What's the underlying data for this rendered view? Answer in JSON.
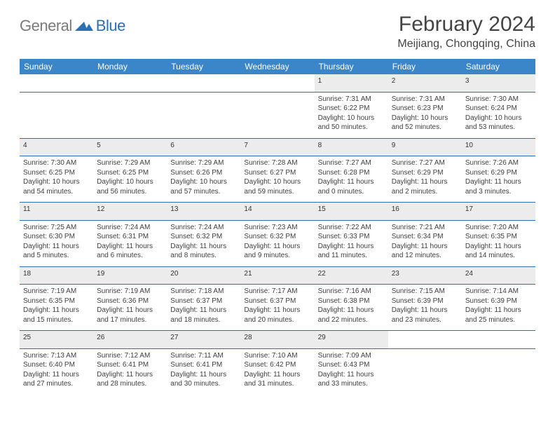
{
  "logo": {
    "left": "General",
    "right": "Blue"
  },
  "title": "February 2024",
  "location": "Meijiang, Chongqing, China",
  "colors": {
    "header_bg": "#3a86c8",
    "rule": "#2d6fb5",
    "daynum_bg": "#ececec",
    "text": "#333333",
    "logo_gray": "#7a7a7a",
    "logo_blue": "#2d6fb5"
  },
  "daysOfWeek": [
    "Sunday",
    "Monday",
    "Tuesday",
    "Wednesday",
    "Thursday",
    "Friday",
    "Saturday"
  ],
  "weeks": [
    [
      null,
      null,
      null,
      null,
      {
        "n": "1",
        "sr": "7:31 AM",
        "ss": "6:22 PM",
        "dl": "10 hours and 50 minutes."
      },
      {
        "n": "2",
        "sr": "7:31 AM",
        "ss": "6:23 PM",
        "dl": "10 hours and 52 minutes."
      },
      {
        "n": "3",
        "sr": "7:30 AM",
        "ss": "6:24 PM",
        "dl": "10 hours and 53 minutes."
      }
    ],
    [
      {
        "n": "4",
        "sr": "7:30 AM",
        "ss": "6:25 PM",
        "dl": "10 hours and 54 minutes."
      },
      {
        "n": "5",
        "sr": "7:29 AM",
        "ss": "6:25 PM",
        "dl": "10 hours and 56 minutes."
      },
      {
        "n": "6",
        "sr": "7:29 AM",
        "ss": "6:26 PM",
        "dl": "10 hours and 57 minutes."
      },
      {
        "n": "7",
        "sr": "7:28 AM",
        "ss": "6:27 PM",
        "dl": "10 hours and 59 minutes."
      },
      {
        "n": "8",
        "sr": "7:27 AM",
        "ss": "6:28 PM",
        "dl": "11 hours and 0 minutes."
      },
      {
        "n": "9",
        "sr": "7:27 AM",
        "ss": "6:29 PM",
        "dl": "11 hours and 2 minutes."
      },
      {
        "n": "10",
        "sr": "7:26 AM",
        "ss": "6:29 PM",
        "dl": "11 hours and 3 minutes."
      }
    ],
    [
      {
        "n": "11",
        "sr": "7:25 AM",
        "ss": "6:30 PM",
        "dl": "11 hours and 5 minutes."
      },
      {
        "n": "12",
        "sr": "7:24 AM",
        "ss": "6:31 PM",
        "dl": "11 hours and 6 minutes."
      },
      {
        "n": "13",
        "sr": "7:24 AM",
        "ss": "6:32 PM",
        "dl": "11 hours and 8 minutes."
      },
      {
        "n": "14",
        "sr": "7:23 AM",
        "ss": "6:32 PM",
        "dl": "11 hours and 9 minutes."
      },
      {
        "n": "15",
        "sr": "7:22 AM",
        "ss": "6:33 PM",
        "dl": "11 hours and 11 minutes."
      },
      {
        "n": "16",
        "sr": "7:21 AM",
        "ss": "6:34 PM",
        "dl": "11 hours and 12 minutes."
      },
      {
        "n": "17",
        "sr": "7:20 AM",
        "ss": "6:35 PM",
        "dl": "11 hours and 14 minutes."
      }
    ],
    [
      {
        "n": "18",
        "sr": "7:19 AM",
        "ss": "6:35 PM",
        "dl": "11 hours and 15 minutes."
      },
      {
        "n": "19",
        "sr": "7:19 AM",
        "ss": "6:36 PM",
        "dl": "11 hours and 17 minutes."
      },
      {
        "n": "20",
        "sr": "7:18 AM",
        "ss": "6:37 PM",
        "dl": "11 hours and 18 minutes."
      },
      {
        "n": "21",
        "sr": "7:17 AM",
        "ss": "6:37 PM",
        "dl": "11 hours and 20 minutes."
      },
      {
        "n": "22",
        "sr": "7:16 AM",
        "ss": "6:38 PM",
        "dl": "11 hours and 22 minutes."
      },
      {
        "n": "23",
        "sr": "7:15 AM",
        "ss": "6:39 PM",
        "dl": "11 hours and 23 minutes."
      },
      {
        "n": "24",
        "sr": "7:14 AM",
        "ss": "6:39 PM",
        "dl": "11 hours and 25 minutes."
      }
    ],
    [
      {
        "n": "25",
        "sr": "7:13 AM",
        "ss": "6:40 PM",
        "dl": "11 hours and 27 minutes."
      },
      {
        "n": "26",
        "sr": "7:12 AM",
        "ss": "6:41 PM",
        "dl": "11 hours and 28 minutes."
      },
      {
        "n": "27",
        "sr": "7:11 AM",
        "ss": "6:41 PM",
        "dl": "11 hours and 30 minutes."
      },
      {
        "n": "28",
        "sr": "7:10 AM",
        "ss": "6:42 PM",
        "dl": "11 hours and 31 minutes."
      },
      {
        "n": "29",
        "sr": "7:09 AM",
        "ss": "6:43 PM",
        "dl": "11 hours and 33 minutes."
      },
      null,
      null
    ]
  ],
  "labels": {
    "sunrise": "Sunrise:",
    "sunset": "Sunset:",
    "daylight": "Daylight:"
  }
}
